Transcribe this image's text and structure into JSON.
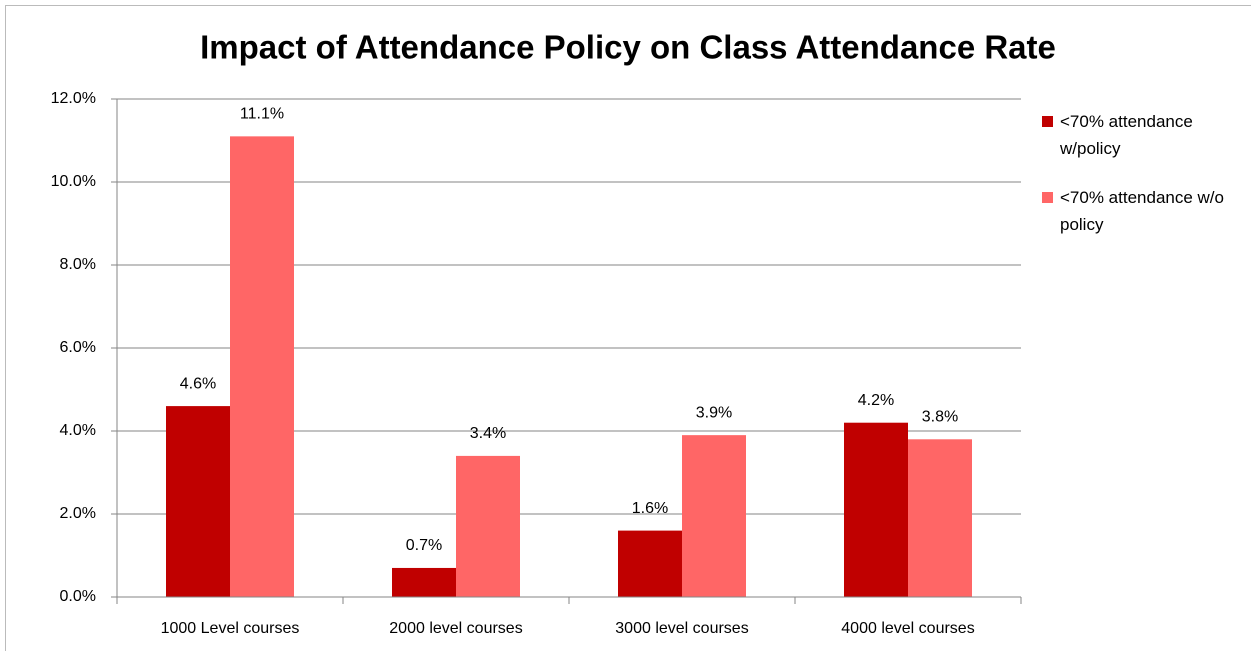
{
  "chart_data": {
    "type": "bar",
    "title": "Impact of Attendance Policy on Class Attendance Rate",
    "categories": [
      "1000 Level courses",
      "2000 level courses",
      "3000 level courses",
      "4000 level courses"
    ],
    "series": [
      {
        "name": "<70% attendance w/policy",
        "color": "#c00000",
        "values": [
          4.6,
          0.7,
          1.6,
          4.2
        ],
        "value_labels": [
          "4.6%",
          "0.7%",
          "1.6%",
          "4.2%"
        ]
      },
      {
        "name": "<70% attendance w/o policy",
        "color": "#ff6666",
        "values": [
          11.1,
          3.4,
          3.9,
          3.8
        ],
        "value_labels": [
          "11.1%",
          "3.4%",
          "3.9%",
          "3.8%"
        ]
      }
    ],
    "ylim": [
      0,
      12
    ],
    "yticks": [
      {
        "value": 0,
        "label": "0.0%"
      },
      {
        "value": 2,
        "label": "2.0%"
      },
      {
        "value": 4,
        "label": "4.0%"
      },
      {
        "value": 6,
        "label": "6.0%"
      },
      {
        "value": 8,
        "label": "8.0%"
      },
      {
        "value": 10,
        "label": "10.0%"
      },
      {
        "value": 12,
        "label": "12.0%"
      }
    ],
    "grid": true,
    "legend": "right"
  }
}
